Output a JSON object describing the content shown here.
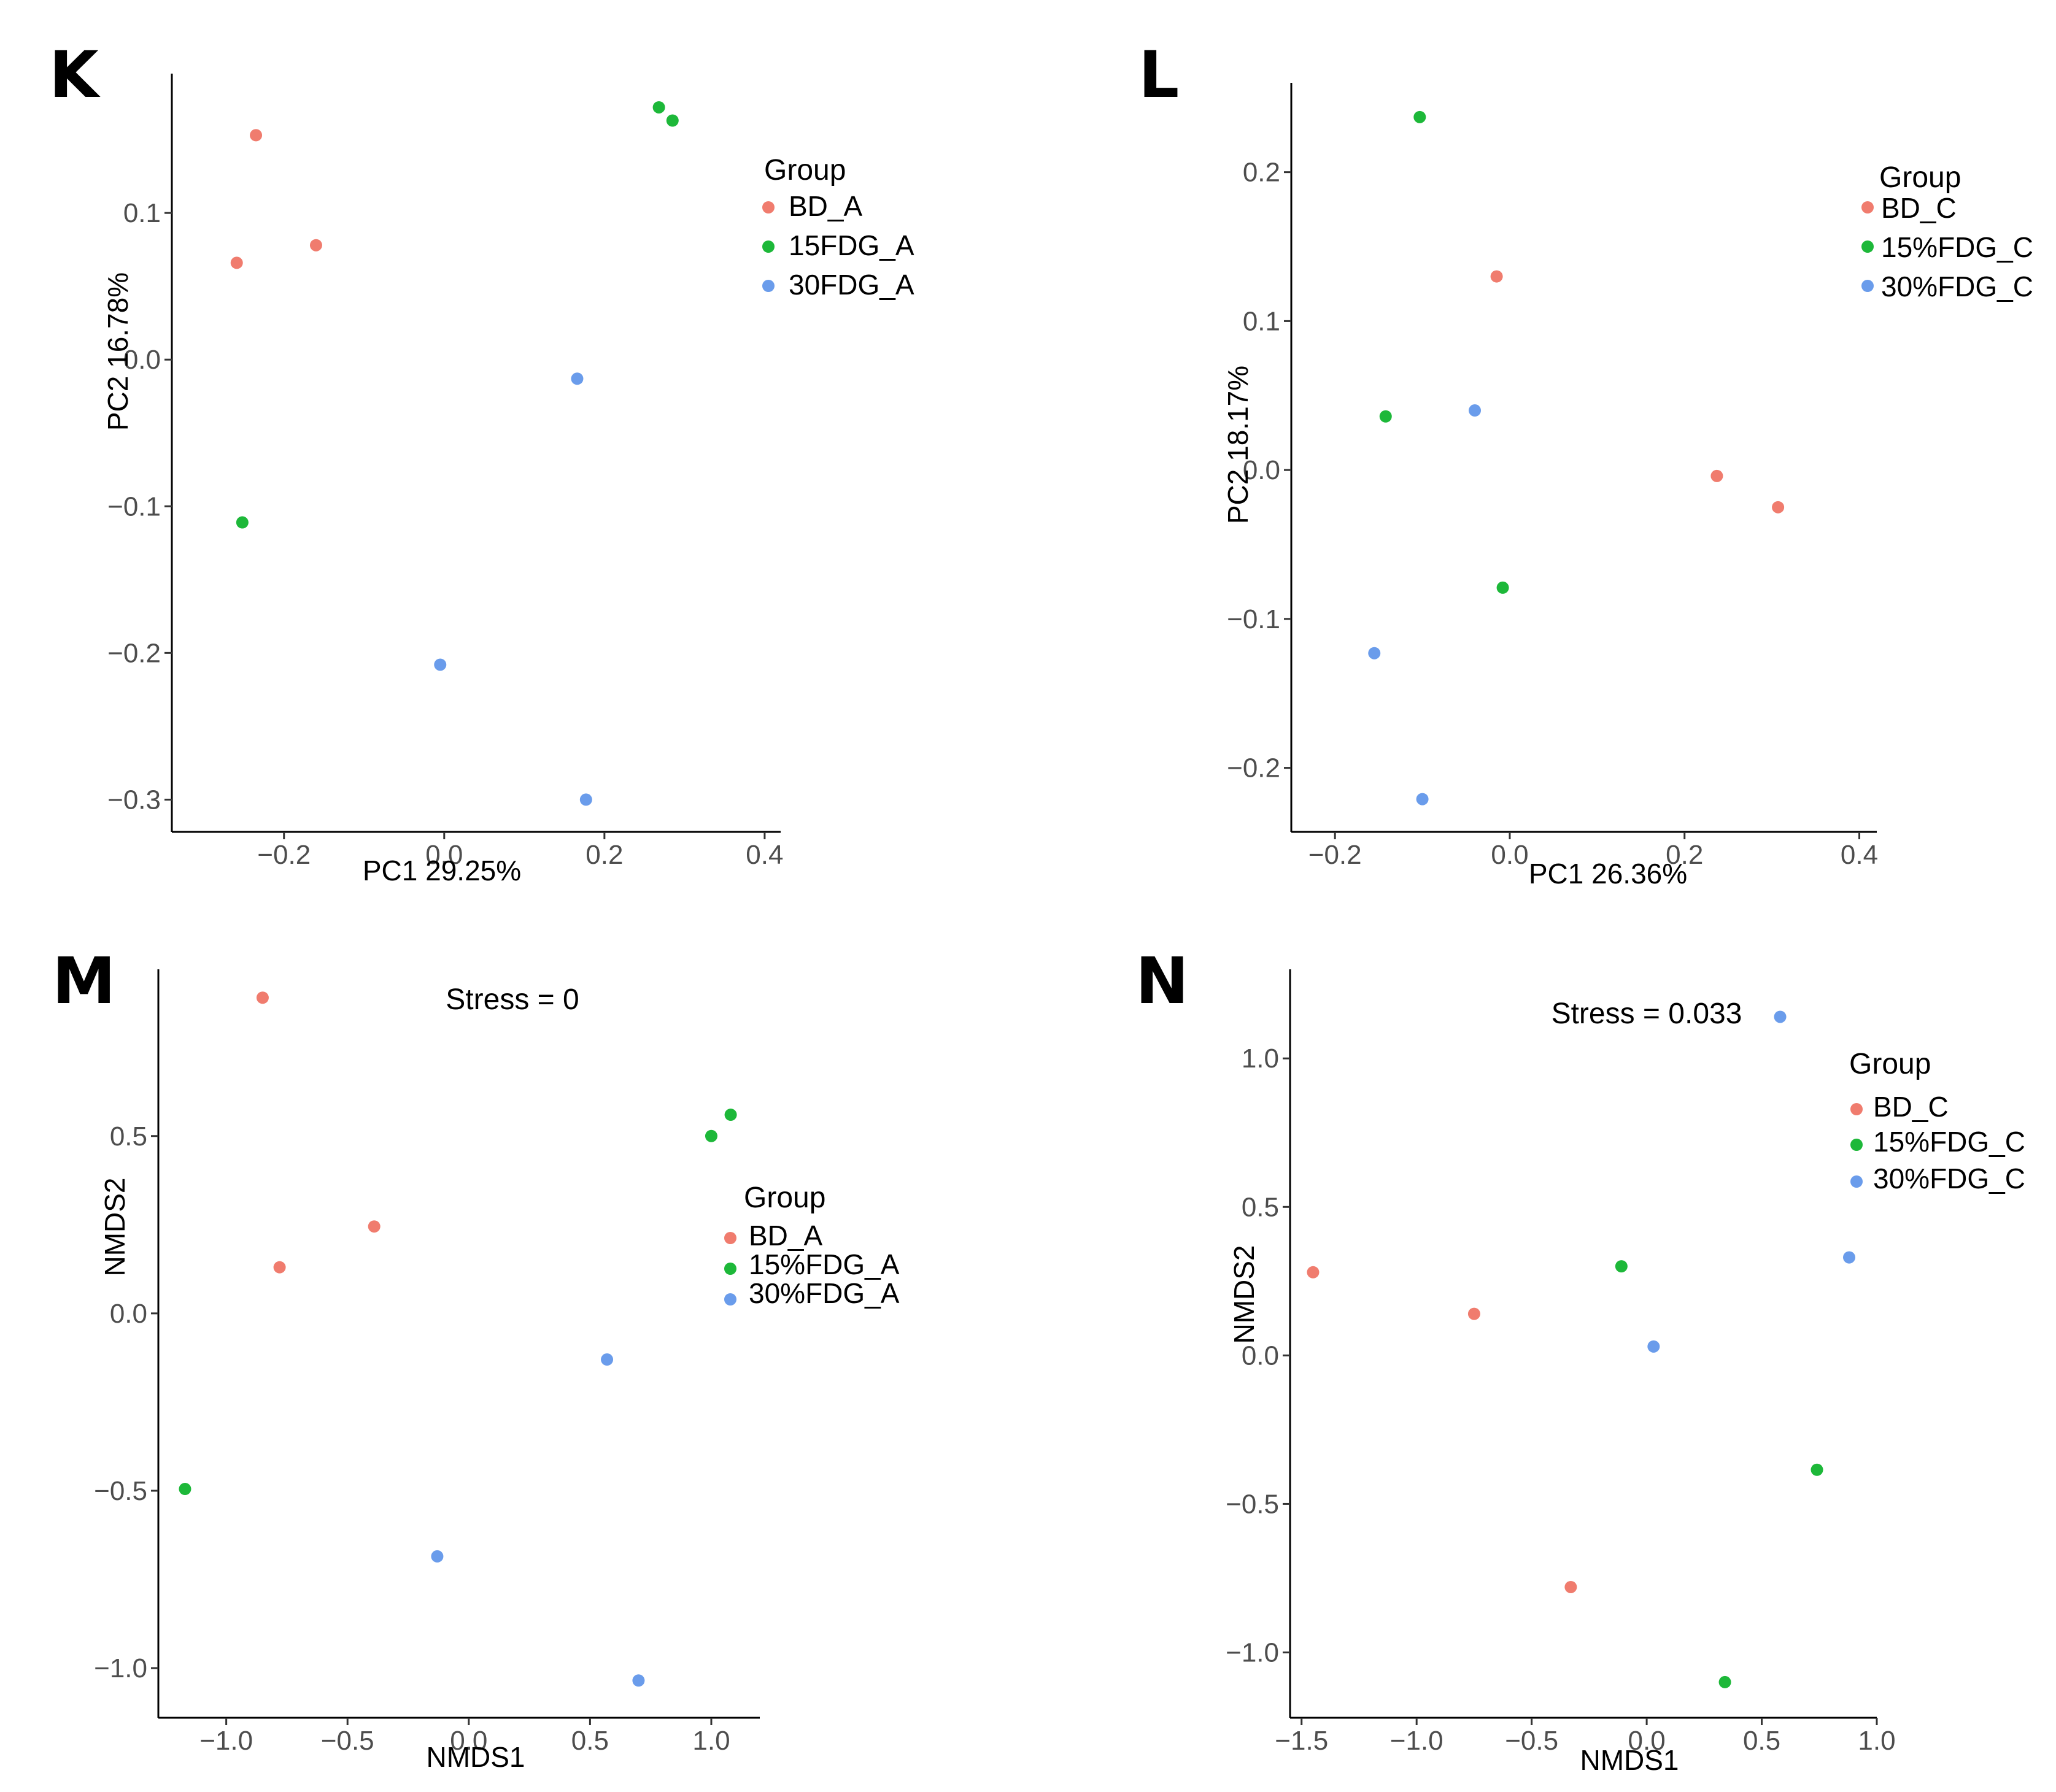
{
  "colors": {
    "BD": "#F07C6E",
    "FDG15": "#1DB839",
    "FDG30": "#6A9CEB"
  },
  "chart_data": [
    {
      "type": "scatter",
      "panel": "K",
      "xlabel": "PC1 29.25%",
      "ylabel": "PC2 16.78%",
      "xlim": [
        -0.34,
        0.42
      ],
      "ylim": [
        -0.322,
        0.195
      ],
      "xticks": [
        -0.2,
        0.0,
        0.2,
        0.4
      ],
      "xtick_labels": [
        "−0.2",
        "0.0",
        "0.2",
        "0.4"
      ],
      "yticks": [
        0.1,
        0.0,
        -0.1,
        -0.2,
        -0.3
      ],
      "ytick_labels": [
        "0.1",
        "0.0",
        "−0.1",
        "−0.2",
        "−0.3"
      ],
      "legend_title": "Group",
      "stress": "",
      "series": [
        {
          "name": "BD_A",
          "color_key": "BD",
          "points": [
            [
              -0.235,
              0.153
            ],
            [
              -0.16,
              0.078
            ],
            [
              -0.259,
              0.066
            ]
          ]
        },
        {
          "name": "15FDG_A",
          "color_key": "FDG15",
          "points": [
            [
              0.268,
              0.172
            ],
            [
              0.285,
              0.163
            ],
            [
              -0.252,
              -0.111
            ]
          ]
        },
        {
          "name": "30FDG_A",
          "color_key": "FDG30",
          "points": [
            [
              0.166,
              -0.013
            ],
            [
              -0.005,
              -0.208
            ],
            [
              0.177,
              -0.3
            ]
          ]
        }
      ]
    },
    {
      "type": "scatter",
      "panel": "L",
      "xlabel": "PC1 26.36%",
      "ylabel": "PC2 18.17%",
      "xlim": [
        -0.25,
        0.42
      ],
      "ylim": [
        -0.243,
        0.26
      ],
      "xticks": [
        -0.2,
        0.0,
        0.2,
        0.4
      ],
      "xtick_labels": [
        "−0.2",
        "0.0",
        "0.2",
        "0.4"
      ],
      "yticks": [
        0.2,
        0.1,
        0.0,
        -0.1,
        -0.2
      ],
      "ytick_labels": [
        "0.2",
        "0.1",
        "0.0",
        "−0.1",
        "−0.2"
      ],
      "legend_title": "Group",
      "stress": "",
      "series": [
        {
          "name": "BD_C",
          "color_key": "BD",
          "points": [
            [
              -0.015,
              0.13
            ],
            [
              0.237,
              -0.004
            ],
            [
              0.307,
              -0.025
            ]
          ]
        },
        {
          "name": "15%FDG_C",
          "color_key": "FDG15",
          "points": [
            [
              -0.103,
              0.237
            ],
            [
              -0.142,
              0.036
            ],
            [
              -0.008,
              -0.079
            ]
          ]
        },
        {
          "name": "30%FDG_C",
          "color_key": "FDG30",
          "points": [
            [
              -0.04,
              0.04
            ],
            [
              -0.155,
              -0.123
            ],
            [
              -0.1,
              -0.221
            ]
          ]
        }
      ]
    },
    {
      "type": "scatter",
      "panel": "M",
      "xlabel": "NMDS1",
      "ylabel": "NMDS2",
      "xlim": [
        -1.28,
        1.2
      ],
      "ylim": [
        -1.14,
        0.97
      ],
      "xticks": [
        -1.0,
        -0.5,
        0.0,
        0.5,
        1.0
      ],
      "xtick_labels": [
        "−1.0",
        "−0.5",
        "0.0",
        "0.5",
        "1.0"
      ],
      "yticks": [
        0.5,
        0.0,
        -0.5,
        -1.0
      ],
      "ytick_labels": [
        "0.5",
        "0.0",
        "−0.5",
        "−1.0"
      ],
      "legend_title": "Group",
      "stress": "Stress = 0",
      "series": [
        {
          "name": "BD_A",
          "color_key": "BD",
          "points": [
            [
              -0.85,
              0.89
            ],
            [
              -0.78,
              0.13
            ],
            [
              -0.39,
              0.245
            ]
          ]
        },
        {
          "name": "15%FDG_A",
          "color_key": "FDG15",
          "points": [
            [
              1.08,
              0.56
            ],
            [
              1.0,
              0.5
            ],
            [
              -1.17,
              -0.495
            ]
          ]
        },
        {
          "name": "30%FDG_A",
          "color_key": "FDG30",
          "points": [
            [
              0.57,
              -0.13
            ],
            [
              -0.13,
              -0.685
            ],
            [
              0.7,
              -1.035
            ]
          ]
        }
      ]
    },
    {
      "type": "scatter",
      "panel": "N",
      "xlabel": "NMDS1",
      "ylabel": "NMDS2",
      "xlim": [
        -1.55,
        1.0
      ],
      "ylim": [
        -1.22,
        1.3
      ],
      "xticks": [
        -1.5,
        -1.0,
        -0.5,
        0.0,
        0.5,
        1.0
      ],
      "xtick_labels": [
        "−1.5",
        "−1.0",
        "−0.5",
        "0.0",
        "0.5",
        "1.0"
      ],
      "yticks": [
        1.0,
        0.5,
        0.0,
        -0.5,
        -1.0
      ],
      "ytick_labels": [
        "1.0",
        "0.5",
        "0.0",
        "−0.5",
        "−1.0"
      ],
      "legend_title": "Group",
      "stress": "Stress = 0.033",
      "series": [
        {
          "name": "BD_C",
          "color_key": "BD",
          "points": [
            [
              -1.45,
              0.28
            ],
            [
              -0.75,
              0.14
            ],
            [
              -0.33,
              -0.78
            ]
          ]
        },
        {
          "name": "15%FDG_C",
          "color_key": "FDG15",
          "points": [
            [
              -0.11,
              0.3
            ],
            [
              0.74,
              -0.385
            ],
            [
              0.34,
              -1.1
            ]
          ]
        },
        {
          "name": "30%FDG_C",
          "color_key": "FDG30",
          "points": [
            [
              0.58,
              1.14
            ],
            [
              0.03,
              0.03
            ],
            [
              0.88,
              0.33
            ]
          ]
        }
      ]
    }
  ]
}
